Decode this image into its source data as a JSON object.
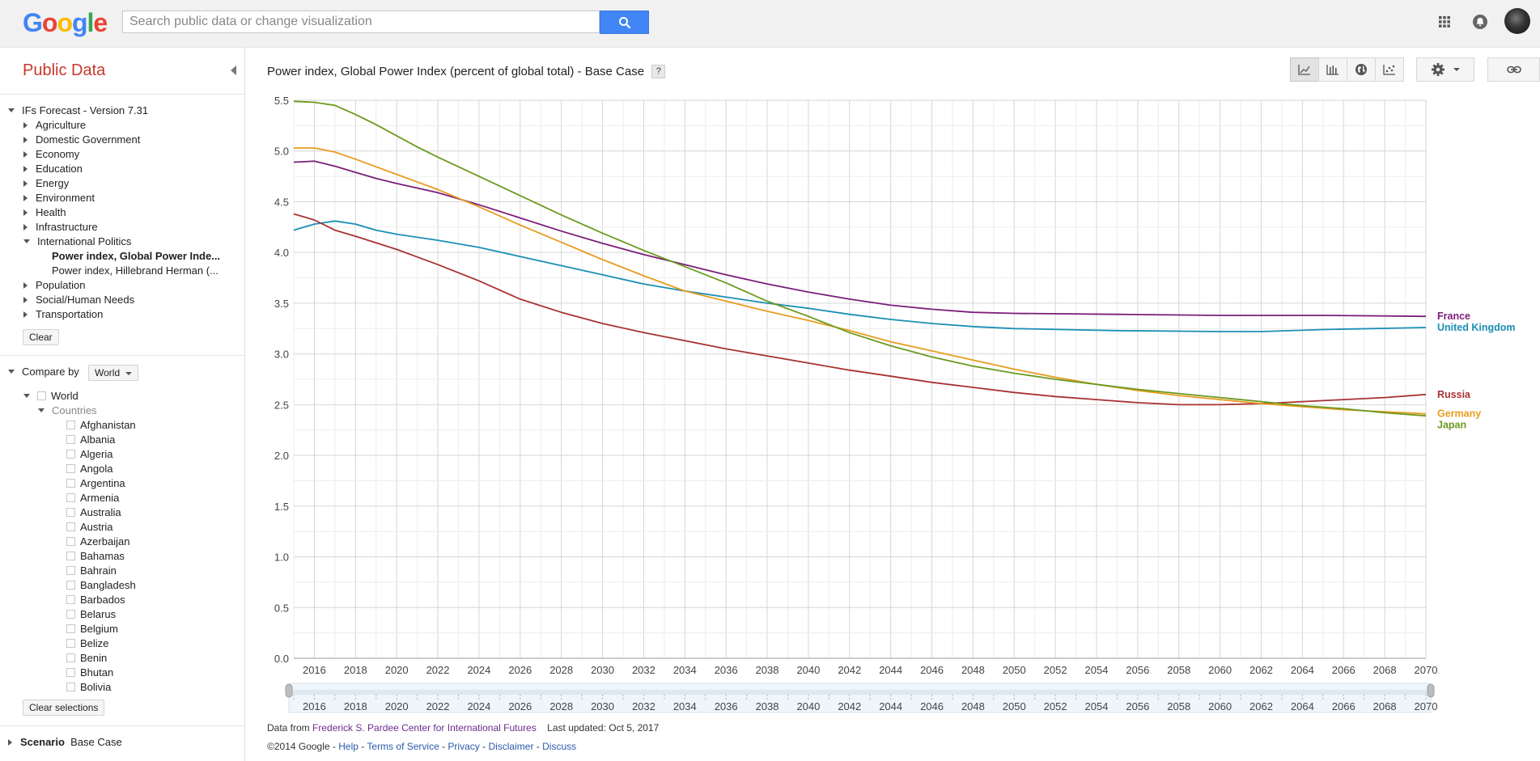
{
  "header": {
    "logo_text": "Google",
    "logo_colors": [
      "#4285f4",
      "#ea4335",
      "#fbbc05",
      "#4285f4",
      "#34a853",
      "#ea4335"
    ],
    "search_placeholder": "Search public data or change visualization",
    "search_icon": "search-icon",
    "apps_icon": "apps-grid-icon",
    "notifications_icon": "bell-icon",
    "accent": "#4285f4"
  },
  "sidebar": {
    "title": "Public Data",
    "dataset": "IFs Forecast - Version 7.31",
    "categories": [
      "Agriculture",
      "Domestic Government",
      "Economy",
      "Education",
      "Energy",
      "Environment",
      "Health",
      "Infrastructure",
      "International Politics"
    ],
    "indicators": [
      "Power index, Global Power Inde...",
      "Power index, Hillebrand Herman (..."
    ],
    "categories_after": [
      "Population",
      "Social/Human Needs",
      "Transportation"
    ],
    "clear_label": "Clear",
    "compare_by_label": "Compare by",
    "compare_by_value": "World",
    "world_label": "World",
    "countries_label": "Countries",
    "countries": [
      "Afghanistan",
      "Albania",
      "Algeria",
      "Angola",
      "Argentina",
      "Armenia",
      "Australia",
      "Austria",
      "Azerbaijan",
      "Bahamas",
      "Bahrain",
      "Bangladesh",
      "Barbados",
      "Belarus",
      "Belgium",
      "Belize",
      "Benin",
      "Bhutan",
      "Bolivia"
    ],
    "clear_selections_label": "Clear selections",
    "scenario_label": "Scenario",
    "scenario_value": "Base Case",
    "title_color": "#c8372d"
  },
  "main": {
    "title": "Power index, Global Power Index (percent of global total) - Base Case",
    "help_label": "?",
    "toolbar_icons": [
      "line-chart-icon",
      "bar-chart-icon",
      "globe-map-icon",
      "scatter-chart-icon",
      "gear-icon",
      "link-icon"
    ]
  },
  "chart_data": {
    "type": "line",
    "title": "Power index, Global Power Index (percent of global total) - Base Case",
    "xlabel": "",
    "ylabel": "",
    "xlim": [
      2015,
      2070
    ],
    "ylim": [
      0,
      5.5
    ],
    "y_ticks": [
      "0.0",
      "0.5",
      "1.0",
      "1.5",
      "2.0",
      "2.5",
      "3.0",
      "3.5",
      "4.0",
      "4.5",
      "5.0",
      "5.5"
    ],
    "x_ticks": [
      "2016",
      "2018",
      "2020",
      "2022",
      "2024",
      "2026",
      "2028",
      "2030",
      "2032",
      "2034",
      "2036",
      "2038",
      "2040",
      "2042",
      "2044",
      "2046",
      "2048",
      "2050",
      "2052",
      "2054",
      "2056",
      "2058",
      "2060",
      "2062",
      "2064",
      "2066",
      "2068",
      "2070"
    ],
    "grid": true,
    "legend": "right end labels",
    "series": [
      {
        "name": "France",
        "color": "#7b1e7a",
        "x": [
          2015,
          2016,
          2017,
          2018,
          2019,
          2020,
          2022,
          2024,
          2026,
          2028,
          2030,
          2032,
          2034,
          2036,
          2038,
          2040,
          2042,
          2044,
          2046,
          2048,
          2050,
          2055,
          2060,
          2065,
          2070
        ],
        "values": [
          4.89,
          4.9,
          4.85,
          4.79,
          4.73,
          4.68,
          4.59,
          4.47,
          4.34,
          4.21,
          4.09,
          3.98,
          3.88,
          3.78,
          3.69,
          3.61,
          3.54,
          3.48,
          3.44,
          3.41,
          3.4,
          3.39,
          3.38,
          3.38,
          3.37
        ]
      },
      {
        "name": "United Kingdom",
        "color": "#1b8fb4",
        "x": [
          2015,
          2016,
          2017,
          2018,
          2019,
          2020,
          2022,
          2024,
          2026,
          2028,
          2030,
          2032,
          2034,
          2036,
          2038,
          2040,
          2042,
          2044,
          2046,
          2048,
          2050,
          2055,
          2060,
          2062,
          2065,
          2070
        ],
        "values": [
          4.22,
          4.28,
          4.31,
          4.28,
          4.22,
          4.18,
          4.12,
          4.05,
          3.96,
          3.87,
          3.78,
          3.69,
          3.62,
          3.56,
          3.5,
          3.45,
          3.39,
          3.34,
          3.3,
          3.27,
          3.25,
          3.23,
          3.22,
          3.22,
          3.24,
          3.26
        ]
      },
      {
        "name": "Russia",
        "color": "#a83232",
        "x": [
          2015,
          2016,
          2017,
          2018,
          2020,
          2022,
          2024,
          2026,
          2028,
          2030,
          2032,
          2034,
          2036,
          2038,
          2040,
          2042,
          2044,
          2046,
          2048,
          2050,
          2052,
          2054,
          2056,
          2058,
          2060,
          2062,
          2064,
          2066,
          2068,
          2070
        ],
        "values": [
          4.38,
          4.32,
          4.22,
          4.16,
          4.03,
          3.88,
          3.72,
          3.54,
          3.41,
          3.3,
          3.21,
          3.13,
          3.05,
          2.98,
          2.91,
          2.84,
          2.78,
          2.72,
          2.67,
          2.62,
          2.58,
          2.55,
          2.52,
          2.5,
          2.5,
          2.51,
          2.53,
          2.55,
          2.57,
          2.6
        ]
      },
      {
        "name": "Germany",
        "color": "#e89c1f",
        "x": [
          2015,
          2016,
          2017,
          2018,
          2020,
          2022,
          2024,
          2026,
          2028,
          2030,
          2032,
          2034,
          2036,
          2038,
          2040,
          2042,
          2044,
          2046,
          2048,
          2050,
          2052,
          2054,
          2056,
          2058,
          2060,
          2062,
          2064,
          2066,
          2068,
          2070
        ],
        "values": [
          5.03,
          5.03,
          4.99,
          4.92,
          4.77,
          4.62,
          4.45,
          4.27,
          4.1,
          3.93,
          3.77,
          3.62,
          3.52,
          3.42,
          3.33,
          3.23,
          3.12,
          3.03,
          2.94,
          2.85,
          2.77,
          2.7,
          2.64,
          2.59,
          2.55,
          2.51,
          2.48,
          2.45,
          2.43,
          2.41
        ]
      },
      {
        "name": "Japan",
        "color": "#6b9a1f",
        "x": [
          2015,
          2016,
          2017,
          2018,
          2019,
          2020,
          2021,
          2022,
          2024,
          2026,
          2028,
          2030,
          2032,
          2034,
          2036,
          2038,
          2040,
          2042,
          2044,
          2046,
          2048,
          2050,
          2052,
          2054,
          2056,
          2058,
          2060,
          2062,
          2064,
          2066,
          2068,
          2070
        ],
        "values": [
          5.49,
          5.48,
          5.45,
          5.36,
          5.26,
          5.15,
          5.04,
          4.94,
          4.75,
          4.56,
          4.37,
          4.19,
          4.02,
          3.86,
          3.7,
          3.52,
          3.37,
          3.21,
          3.08,
          2.97,
          2.88,
          2.81,
          2.75,
          2.7,
          2.65,
          2.61,
          2.57,
          2.53,
          2.49,
          2.46,
          2.42,
          2.39
        ]
      }
    ]
  },
  "footer": {
    "data_from_label": "Data from",
    "source_link": "Frederick S. Pardee Center for International Futures",
    "last_updated": "Last updated: Oct 5, 2017",
    "copyright": "©2014 Google -",
    "links": [
      "Help",
      "Terms of Service",
      "Privacy",
      "Disclaimer",
      "Discuss"
    ]
  }
}
